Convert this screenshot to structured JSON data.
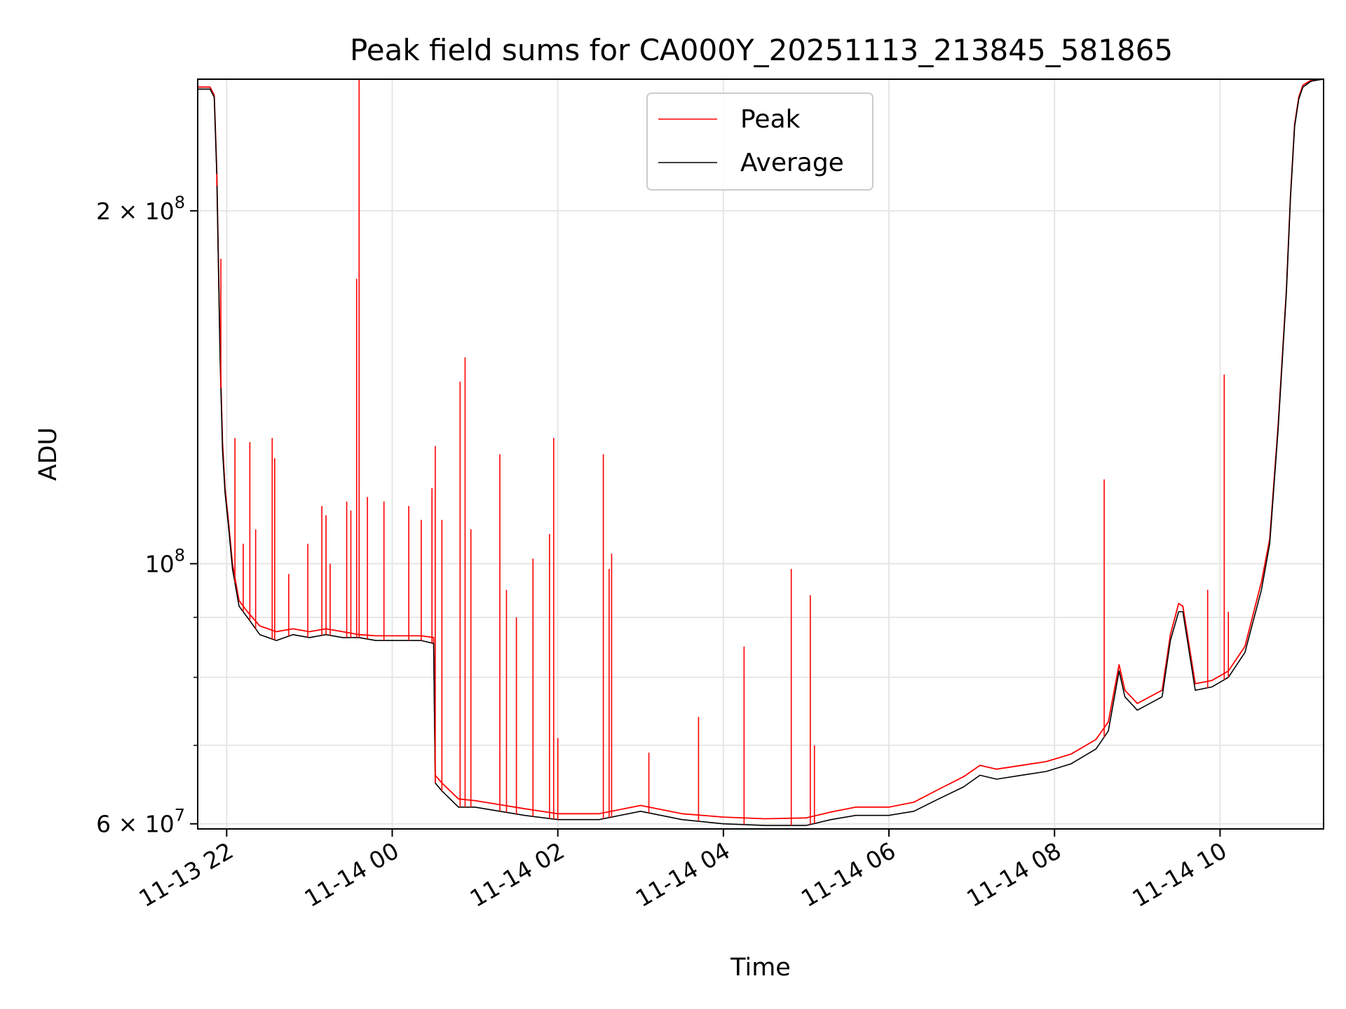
{
  "chart_data": {
    "type": "line",
    "title": "Peak field sums for CA000Y_20251113_213845_581865",
    "xlabel": "Time",
    "ylabel": "ADU",
    "yscale": "log",
    "xlim_hours": [
      -2.35,
      11.25
    ],
    "ylim": [
      59400000,
      259000000
    ],
    "x_unit": "hours relative to 11-14 00:00",
    "x_ticks": [
      {
        "value": -2,
        "label": "11-13 22"
      },
      {
        "value": 0,
        "label": "11-14 00"
      },
      {
        "value": 2,
        "label": "11-14 02"
      },
      {
        "value": 4,
        "label": "11-14 04"
      },
      {
        "value": 6,
        "label": "11-14 06"
      },
      {
        "value": 8,
        "label": "11-14 08"
      },
      {
        "value": 10,
        "label": "11-14 10"
      }
    ],
    "y_ticks": [
      {
        "value": 60000000,
        "base": "6 × 10",
        "exp": "7"
      },
      {
        "value": 100000000,
        "base": "10",
        "exp": "8"
      },
      {
        "value": 200000000,
        "base": "2 × 10",
        "exp": "8"
      }
    ],
    "y_minor_gridlines": [
      70000000,
      80000000,
      90000000
    ],
    "grid": true,
    "legend_position": "upper-center",
    "legend": [
      {
        "name": "Peak",
        "color": "#ff0000"
      },
      {
        "name": "Average",
        "color": "#000000"
      }
    ],
    "series": [
      {
        "name": "Average",
        "color": "#000000",
        "x": [
          -2.35,
          -2.2,
          -2.15,
          -2.12,
          -2.08,
          -2.05,
          -2.02,
          -1.98,
          -1.93,
          -1.85,
          -1.75,
          -1.6,
          -1.4,
          -1.2,
          -1.0,
          -0.8,
          -0.6,
          -0.4,
          -0.2,
          0.0,
          0.2,
          0.35,
          0.5,
          0.52,
          0.6,
          0.8,
          1.0,
          1.3,
          1.6,
          2.0,
          2.5,
          3.0,
          3.5,
          4.0,
          4.5,
          5.0,
          5.3,
          5.6,
          6.0,
          6.3,
          6.6,
          6.9,
          7.1,
          7.3,
          7.6,
          7.9,
          8.2,
          8.5,
          8.65,
          8.78,
          8.85,
          9.0,
          9.3,
          9.4,
          9.5,
          9.55,
          9.7,
          9.9,
          10.1,
          10.3,
          10.5,
          10.6,
          10.7,
          10.8,
          10.85,
          10.9,
          10.95,
          11.0,
          11.1,
          11.25
        ],
        "y": [
          254000000,
          254000000,
          250000000,
          215000000,
          150000000,
          125000000,
          115000000,
          108000000,
          99000000,
          92000000,
          90000000,
          87000000,
          86000000,
          87000000,
          86500000,
          87000000,
          86500000,
          86500000,
          86000000,
          86000000,
          86000000,
          86000000,
          85500000,
          65000000,
          64000000,
          62000000,
          62000000,
          61500000,
          61000000,
          60500000,
          60500000,
          61500000,
          60500000,
          60000000,
          59800000,
          59800000,
          60500000,
          61000000,
          61000000,
          61500000,
          63000000,
          64500000,
          66000000,
          65500000,
          66000000,
          66500000,
          67500000,
          69500000,
          72000000,
          81000000,
          77000000,
          75000000,
          77000000,
          86000000,
          91000000,
          91000000,
          78000000,
          78500000,
          80000000,
          84000000,
          95000000,
          104000000,
          130000000,
          170000000,
          205000000,
          236000000,
          249000000,
          255000000,
          258000000,
          259000000
        ]
      },
      {
        "name": "Peak",
        "color": "#ff0000",
        "x": [
          -2.35,
          -2.2,
          -2.15,
          -2.12,
          -2.08,
          -2.05,
          -2.02,
          -1.98,
          -1.93,
          -1.85,
          -1.75,
          -1.6,
          -1.4,
          -1.2,
          -1.0,
          -0.8,
          -0.6,
          -0.4,
          -0.2,
          0.0,
          0.2,
          0.35,
          0.5,
          0.52,
          0.6,
          0.8,
          1.0,
          1.3,
          1.6,
          2.0,
          2.5,
          3.0,
          3.5,
          4.0,
          4.5,
          5.0,
          5.3,
          5.6,
          6.0,
          6.3,
          6.6,
          6.9,
          7.1,
          7.3,
          7.6,
          7.9,
          8.2,
          8.5,
          8.65,
          8.78,
          8.85,
          9.0,
          9.3,
          9.4,
          9.5,
          9.55,
          9.7,
          9.9,
          10.1,
          10.3,
          10.5,
          10.6,
          10.7,
          10.8,
          10.85,
          10.9,
          10.95,
          11.0,
          11.1,
          11.25
        ],
        "y": [
          255000000,
          255000000,
          251000000,
          217000000,
          152000000,
          127000000,
          116000000,
          109000000,
          100000000,
          93000000,
          91000000,
          88500000,
          87500000,
          88000000,
          87500000,
          88000000,
          87500000,
          87000000,
          86800000,
          86800000,
          86800000,
          86800000,
          86500000,
          66000000,
          65000000,
          63000000,
          62800000,
          62300000,
          61800000,
          61200000,
          61200000,
          62200000,
          61200000,
          60800000,
          60600000,
          60700000,
          61400000,
          62000000,
          62000000,
          62600000,
          64200000,
          65800000,
          67300000,
          66800000,
          67300000,
          67800000,
          68800000,
          70800000,
          73300000,
          82000000,
          78000000,
          76000000,
          78000000,
          87000000,
          92500000,
          92000000,
          79000000,
          79500000,
          81000000,
          85000000,
          96500000,
          105000000,
          131000000,
          171000000,
          206000000,
          237000000,
          250000000,
          256000000,
          258500000,
          259000000
        ]
      }
    ],
    "peak_spikes": {
      "x": [
        -2.12,
        -2.07,
        -1.9,
        -1.8,
        -1.72,
        -1.65,
        -1.45,
        -1.42,
        -1.25,
        -1.02,
        -0.85,
        -0.8,
        -0.75,
        -0.55,
        -0.5,
        -0.43,
        -0.4,
        -0.3,
        -0.1,
        0.2,
        0.35,
        0.48,
        0.52,
        0.6,
        0.82,
        0.88,
        0.95,
        1.3,
        1.38,
        1.5,
        1.7,
        1.9,
        1.95,
        2.0,
        2.55,
        2.62,
        2.65,
        3.1,
        3.7,
        4.25,
        4.82,
        5.05,
        5.1,
        8.6,
        9.85,
        10.05,
        10.1
      ],
      "y": [
        210000000,
        182000000,
        128000000,
        104000000,
        127000000,
        107000000,
        128000000,
        123000000,
        98000000,
        104000000,
        112000000,
        110000000,
        100000000,
        113000000,
        111000000,
        175000000,
        259000000,
        114000000,
        113000000,
        112000000,
        109000000,
        116000000,
        126000000,
        109000000,
        143000000,
        150000000,
        107000000,
        124000000,
        95000000,
        90000000,
        101000000,
        106000000,
        128000000,
        71000000,
        124000000,
        99000000,
        102000000,
        69000000,
        74000000,
        85000000,
        99000000,
        94000000,
        70000000,
        118000000,
        95000000,
        145000000,
        91000000
      ]
    }
  }
}
